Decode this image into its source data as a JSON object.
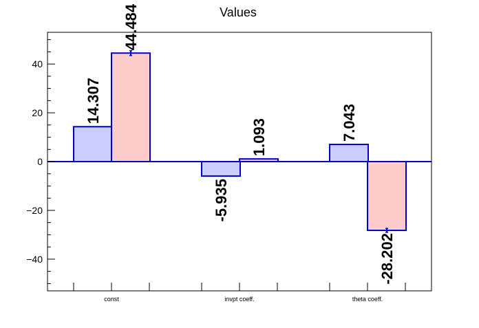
{
  "chart_data": {
    "type": "bar",
    "title": "Values",
    "xlabel": "",
    "ylabel": "",
    "categories": [
      "const",
      "invpt coeff.",
      "theta coeff."
    ],
    "ylim": [
      -53,
      53
    ],
    "yticks": [
      -40,
      -20,
      0,
      20,
      40
    ],
    "ytick_labels": [
      "−40",
      "−20",
      "0",
      "20",
      "40"
    ],
    "grid": false,
    "legend": "none",
    "series": [
      {
        "values": [
          14.307,
          -5.935,
          7.043
        ],
        "labels": [
          "14.307",
          "-5.935",
          "7.043"
        ],
        "errors": [
          0,
          0,
          0
        ],
        "fill": "#ccccff",
        "stroke": "#0000cc"
      },
      {
        "values": [
          44.484,
          1.093,
          -28.202
        ],
        "labels": [
          "44.484",
          "1.093",
          "-28.202"
        ],
        "errors": [
          1.0,
          0,
          0.8
        ],
        "fill": "#ffcccc",
        "stroke": "#0000cc"
      }
    ],
    "zero_line_color": "#0000cc",
    "axis_color": "#000000"
  }
}
